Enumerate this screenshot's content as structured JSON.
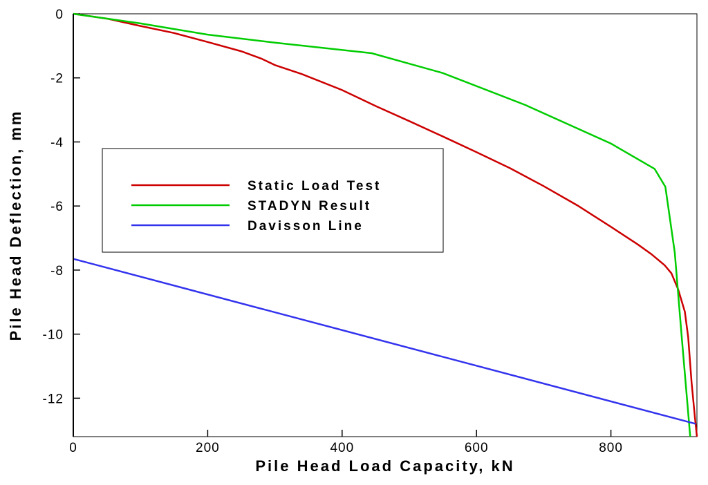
{
  "chart_data": {
    "type": "line",
    "xlabel": "Pile Head Load Capacity, kN",
    "ylabel": "Pile Head Deflection, mm",
    "xlim": [
      0,
      928
    ],
    "ylim": [
      -13.2,
      0
    ],
    "xticks": [
      0,
      200,
      400,
      600,
      800
    ],
    "yticks": [
      0,
      -2,
      -4,
      -6,
      -8,
      -10,
      -12
    ],
    "grid": false,
    "legend": "upper left",
    "series": [
      {
        "name": "Static Load Test",
        "color": "#cc0000",
        "x": [
          0,
          50,
          100,
          150,
          200,
          250,
          280,
          300,
          340,
          400,
          450,
          500,
          550,
          600,
          650,
          700,
          750,
          800,
          840,
          860,
          880,
          890,
          900,
          910,
          915,
          920,
          925,
          928
        ],
        "y": [
          0,
          -0.15,
          -0.38,
          -0.6,
          -0.88,
          -1.17,
          -1.4,
          -1.6,
          -1.88,
          -2.38,
          -2.88,
          -3.35,
          -3.83,
          -4.32,
          -4.82,
          -5.38,
          -5.98,
          -6.65,
          -7.2,
          -7.5,
          -7.85,
          -8.1,
          -8.6,
          -9.3,
          -10.1,
          -11.5,
          -12.6,
          -13.2
        ]
      },
      {
        "name": "STADYN Result",
        "color": "#00cc00",
        "x": [
          0,
          100,
          200,
          300,
          444,
          550,
          673,
          800,
          865,
          881,
          895,
          905,
          918
        ],
        "y": [
          0,
          -0.3,
          -0.65,
          -0.9,
          -1.23,
          -1.85,
          -2.85,
          -4.05,
          -4.84,
          -5.4,
          -7.45,
          -10.0,
          -13.2
        ]
      },
      {
        "name": "Davisson Line",
        "color": "#3333ee",
        "x": [
          0,
          926
        ],
        "y": [
          -7.65,
          -12.8
        ]
      }
    ]
  }
}
